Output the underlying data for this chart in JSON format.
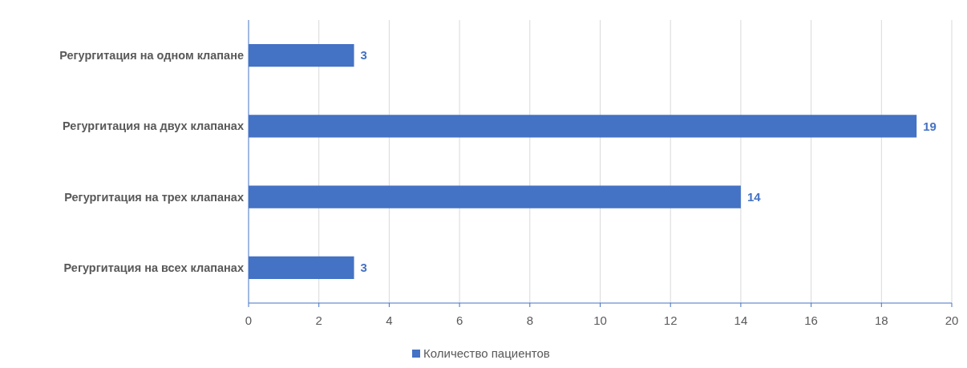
{
  "chart_data": {
    "type": "bar",
    "orientation": "horizontal",
    "categories": [
      "Регургитация на одном клапане",
      "Регургитация на двух клапанах",
      "Регургитация на трех клапанах",
      "Регургитация на всех клапанах"
    ],
    "series": [
      {
        "name": "Количество пациентов",
        "color": "#4472c4",
        "values": [
          3,
          19,
          14,
          3
        ]
      }
    ],
    "xlim": [
      0,
      20
    ],
    "xticks": [
      0,
      2,
      4,
      6,
      8,
      10,
      12,
      14,
      16,
      18,
      20
    ],
    "grid": "x",
    "legend": "bottom",
    "data_labels": true
  }
}
